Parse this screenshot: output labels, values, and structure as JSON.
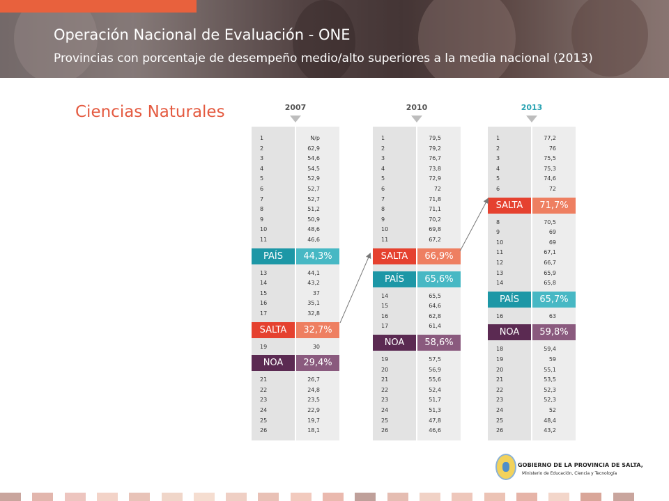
{
  "header": {
    "title": "Operación Nacional de Evaluación - ONE",
    "subtitle": "Provincias con porcentaje de desempeño medio/alto superiores a la media nacional  (2013)"
  },
  "section_title": "Ciencias Naturales",
  "colors": {
    "pais_dark": "#1d97a6",
    "pais_light": "#47b8c4",
    "salta_dark": "#e5412f",
    "salta_light": "#ee7f61",
    "noa_dark": "#5b2a52",
    "noa_light": "#8a5a7e",
    "accent": "#e8613d"
  },
  "columns": [
    {
      "year": "2007",
      "items": [
        {
          "type": "row",
          "rank": "1",
          "value": "N/p"
        },
        {
          "type": "row",
          "rank": "2",
          "value": "62,9"
        },
        {
          "type": "row",
          "rank": "3",
          "value": "54,6"
        },
        {
          "type": "row",
          "rank": "4",
          "value": "54,5"
        },
        {
          "type": "row",
          "rank": "5",
          "value": "52,9"
        },
        {
          "type": "row",
          "rank": "6",
          "value": "52,7"
        },
        {
          "type": "row",
          "rank": "7",
          "value": "52,7"
        },
        {
          "type": "row",
          "rank": "8",
          "value": "51,2"
        },
        {
          "type": "row",
          "rank": "9",
          "value": "50,9"
        },
        {
          "type": "row",
          "rank": "10",
          "value": "48,6"
        },
        {
          "type": "row",
          "rank": "11",
          "value": "46,6"
        },
        {
          "type": "badge",
          "kind": "pais",
          "label": "PAÍS",
          "value": "44,3%"
        },
        {
          "type": "row",
          "rank": "13",
          "value": "44,1"
        },
        {
          "type": "row",
          "rank": "14",
          "value": "43,2"
        },
        {
          "type": "row",
          "rank": "15",
          "value": "37"
        },
        {
          "type": "row",
          "rank": "16",
          "value": "35,1"
        },
        {
          "type": "row",
          "rank": "17",
          "value": "32,8"
        },
        {
          "type": "badge",
          "kind": "salta",
          "label": "SALTA",
          "value": "32,7%"
        },
        {
          "type": "row",
          "rank": "19",
          "value": "30"
        },
        {
          "type": "badge",
          "kind": "noa",
          "label": "NOA",
          "value": "29,4%"
        },
        {
          "type": "row",
          "rank": "21",
          "value": "26,7"
        },
        {
          "type": "row",
          "rank": "22",
          "value": "24,8"
        },
        {
          "type": "row",
          "rank": "23",
          "value": "23,5"
        },
        {
          "type": "row",
          "rank": "24",
          "value": "22,9"
        },
        {
          "type": "row",
          "rank": "25",
          "value": "19,7"
        },
        {
          "type": "row",
          "rank": "26",
          "value": "18,1"
        }
      ]
    },
    {
      "year": "2010",
      "items": [
        {
          "type": "row",
          "rank": "1",
          "value": "79,5"
        },
        {
          "type": "row",
          "rank": "2",
          "value": "79,2"
        },
        {
          "type": "row",
          "rank": "3",
          "value": "76,7"
        },
        {
          "type": "row",
          "rank": "4",
          "value": "73,8"
        },
        {
          "type": "row",
          "rank": "5",
          "value": "72,9"
        },
        {
          "type": "row",
          "rank": "6",
          "value": "72"
        },
        {
          "type": "row",
          "rank": "7",
          "value": "71,8"
        },
        {
          "type": "row",
          "rank": "8",
          "value": "71,1"
        },
        {
          "type": "row",
          "rank": "9",
          "value": "70,2"
        },
        {
          "type": "row",
          "rank": "10",
          "value": "69,8"
        },
        {
          "type": "row",
          "rank": "11",
          "value": "67,2"
        },
        {
          "type": "badge",
          "kind": "salta",
          "label": "SALTA",
          "value": "66,9%"
        },
        {
          "type": "badge",
          "kind": "pais",
          "label": "PAÍS",
          "value": "65,6%"
        },
        {
          "type": "row",
          "rank": "14",
          "value": "65,5"
        },
        {
          "type": "row",
          "rank": "15",
          "value": "64,6"
        },
        {
          "type": "row",
          "rank": "16",
          "value": "62,8"
        },
        {
          "type": "row",
          "rank": "17",
          "value": "61,4"
        },
        {
          "type": "badge",
          "kind": "noa",
          "label": "NOA",
          "value": "58,6%"
        },
        {
          "type": "row",
          "rank": "19",
          "value": "57,5"
        },
        {
          "type": "row",
          "rank": "20",
          "value": "56,9"
        },
        {
          "type": "row",
          "rank": "21",
          "value": "55,6"
        },
        {
          "type": "row",
          "rank": "22",
          "value": "52,4"
        },
        {
          "type": "row",
          "rank": "23",
          "value": "51,7"
        },
        {
          "type": "row",
          "rank": "24",
          "value": "51,3"
        },
        {
          "type": "row",
          "rank": "25",
          "value": "47,8"
        },
        {
          "type": "row",
          "rank": "26",
          "value": "46,6"
        }
      ]
    },
    {
      "year": "2013",
      "items": [
        {
          "type": "row",
          "rank": "1",
          "value": "77,2"
        },
        {
          "type": "row",
          "rank": "2",
          "value": "76"
        },
        {
          "type": "row",
          "rank": "3",
          "value": "75,5"
        },
        {
          "type": "row",
          "rank": "4",
          "value": "75,3"
        },
        {
          "type": "row",
          "rank": "5",
          "value": "74,6"
        },
        {
          "type": "row",
          "rank": "6",
          "value": "72"
        },
        {
          "type": "badge",
          "kind": "salta",
          "label": "SALTA",
          "value": "71,7%"
        },
        {
          "type": "row",
          "rank": "8",
          "value": "70,5"
        },
        {
          "type": "row",
          "rank": "9",
          "value": "69"
        },
        {
          "type": "row",
          "rank": "10",
          "value": "69"
        },
        {
          "type": "row",
          "rank": "11",
          "value": "67,1"
        },
        {
          "type": "row",
          "rank": "12",
          "value": "66,7"
        },
        {
          "type": "row",
          "rank": "13",
          "value": "65,9"
        },
        {
          "type": "row",
          "rank": "14",
          "value": "65,8"
        },
        {
          "type": "badge",
          "kind": "pais",
          "label": "PAÍS",
          "value": "65,7%"
        },
        {
          "type": "row",
          "rank": "16",
          "value": "63"
        },
        {
          "type": "badge",
          "kind": "noa",
          "label": "NOA",
          "value": "59,8%"
        },
        {
          "type": "row",
          "rank": "18",
          "value": "59,4"
        },
        {
          "type": "row",
          "rank": "19",
          "value": "59"
        },
        {
          "type": "row",
          "rank": "20",
          "value": "55,1"
        },
        {
          "type": "row",
          "rank": "21",
          "value": "53,5"
        },
        {
          "type": "row",
          "rank": "22",
          "value": "52,3"
        },
        {
          "type": "row",
          "rank": "23",
          "value": "52,3"
        },
        {
          "type": "row",
          "rank": "24",
          "value": "52"
        },
        {
          "type": "row",
          "rank": "25",
          "value": "48,4"
        },
        {
          "type": "row",
          "rank": "26",
          "value": "43,2"
        }
      ]
    }
  ],
  "logo": {
    "line1": "GOBIERNO DE LA PROVINCIA DE SALTA,",
    "line2": "Ministerio de Educación, Ciencia y Tecnología"
  },
  "footer_colors": [
    "#c9a59d",
    "#e2b6ad",
    "#edc5bf",
    "#f3d3c8",
    "#e8c3b8",
    "#f0d6c9",
    "#f5ddd0",
    "#efcfc4",
    "#e9c1b6",
    "#f2cabe",
    "#eab9ae",
    "#bfa09a",
    "#e5bdb2",
    "#f1d2c6",
    "#eec7bb",
    "#ecc3b5",
    "#e6b4a8",
    "#f3d6ca",
    "#d9a699",
    "#c9a59d"
  ]
}
